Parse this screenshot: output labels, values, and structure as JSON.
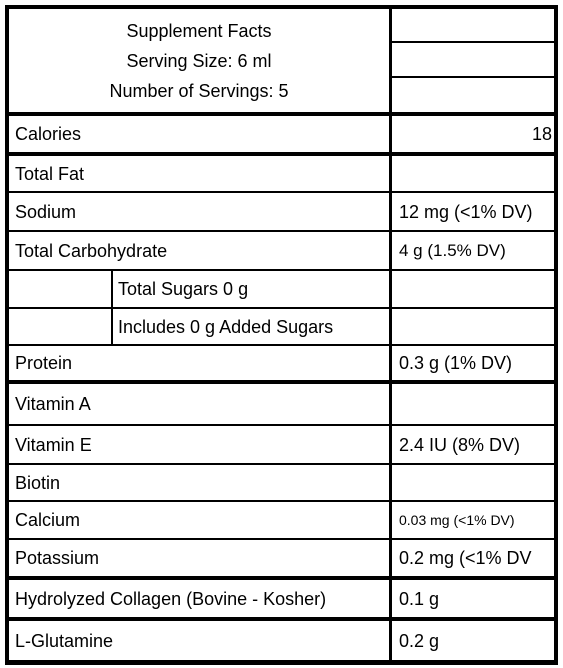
{
  "header": {
    "lines": [
      "Supplement Facts",
      "Serving Size: 6 ml",
      "Number of Servings: 5"
    ]
  },
  "table": {
    "rows": [
      {
        "name": "Calories",
        "value": "18"
      },
      {
        "name": "Total Fat"
      },
      {
        "name": "Sodium",
        "value": "12 mg (<1% DV)"
      },
      {
        "name": "Total Carbohydrate",
        "value": "4 g (1.5% DV)"
      },
      {
        "name": "Total Sugars 0 g"
      },
      {
        "name": "Includes 0 g Added Sugars"
      },
      {
        "name": "Protein",
        "value": "0.3 g (1% DV)"
      },
      {
        "name": "Vitamin A"
      },
      {
        "name": "Vitamin E",
        "value": "2.4 IU (8% DV)"
      },
      {
        "name": "Biotin"
      },
      {
        "name": "Calcium",
        "value": "0.03 mg (<1% DV)"
      },
      {
        "name": "Potassium",
        "value": "0.2 mg (<1% DV"
      },
      {
        "name": "Hydrolyzed Collagen (Bovine - Kosher)",
        "value": "0.1 g"
      },
      {
        "name": "L-Glutamine",
        "value": "0.2 g"
      }
    ]
  }
}
